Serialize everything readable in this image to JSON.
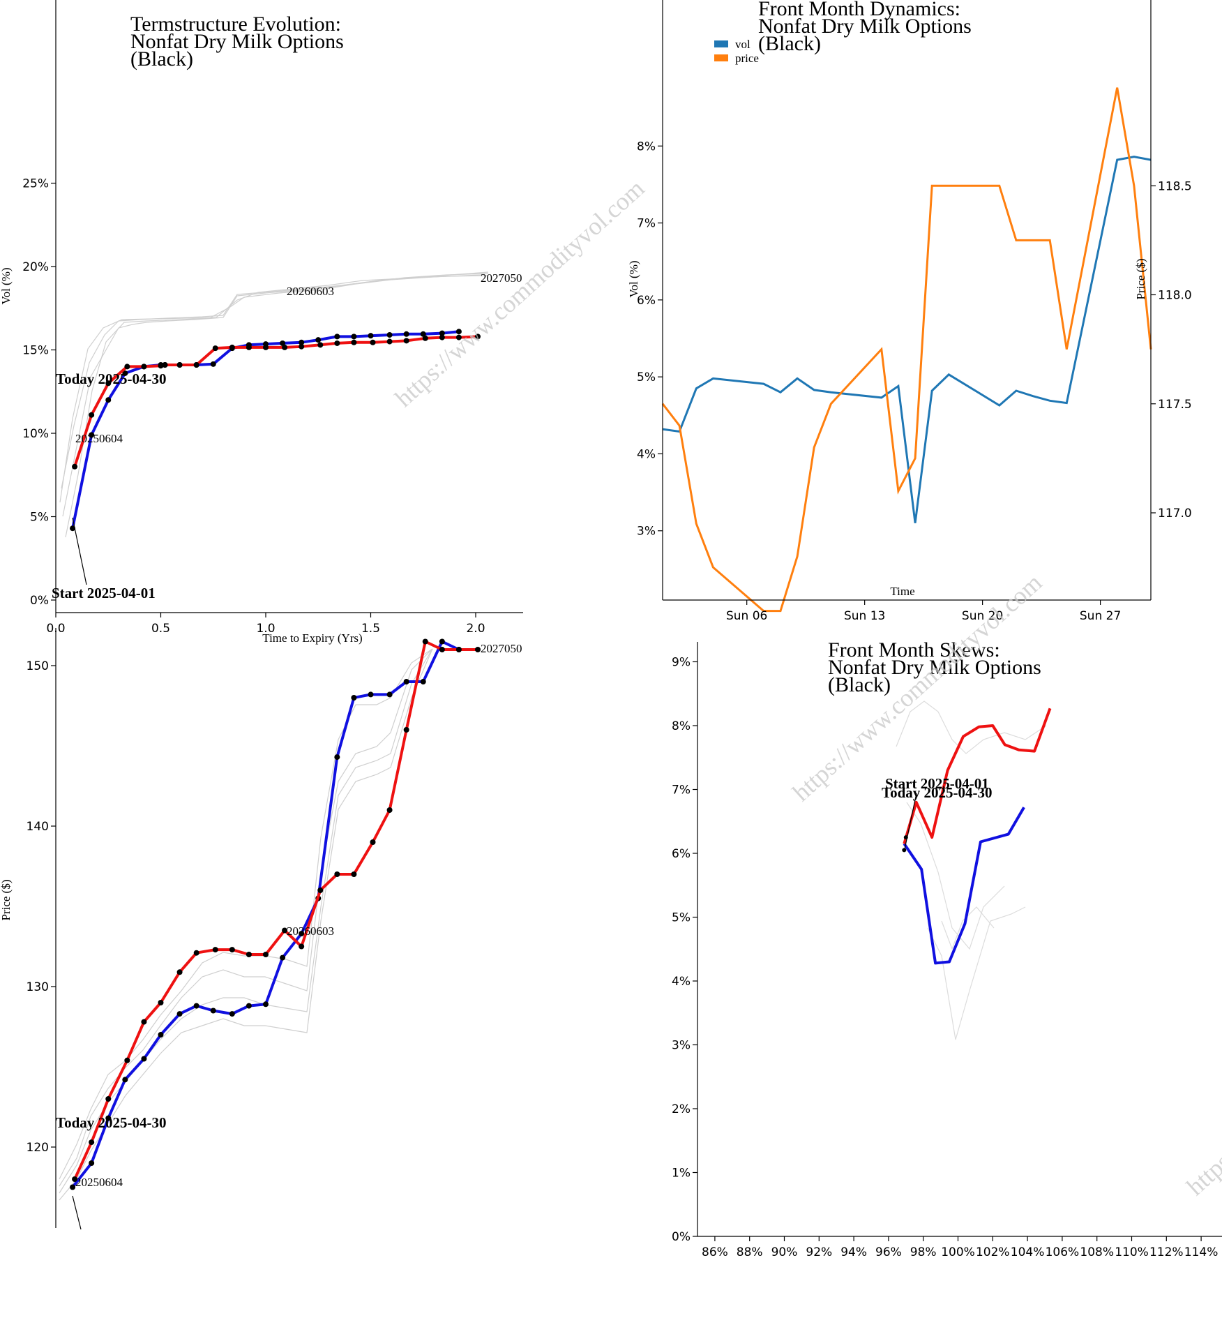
{
  "watermark": "https://www.commodityvol.com",
  "colors": {
    "blue": "#1010e0",
    "red": "#ee1111",
    "ghost": "#cfcfcf",
    "vol": "#1f77b4",
    "price": "#ff7f0e"
  },
  "chart_data": [
    {
      "id": "term_vol",
      "type": "line",
      "title": [
        "Termstructure Evolution:",
        "Nonfat Dry Milk Options",
        "(Black)"
      ],
      "xlabel": "Time to Expiry (Yrs)",
      "ylabel": "Vol (%)",
      "xlim": [
        0,
        2.2
      ],
      "ylim": [
        0,
        30
      ],
      "xticks": [
        "0.0",
        "0.5",
        "1.0",
        "1.5",
        "2.0"
      ],
      "yticks": [
        "0%",
        "5%",
        "10%",
        "15%",
        "20%",
        "25%"
      ],
      "labels": {
        "first_contract": "20250604",
        "mid_contract": "20260603",
        "last_contract": "2027050"
      },
      "annotations": {
        "today": "Today 2025-04-30",
        "start": "Start 2025-04-01"
      },
      "series": [
        {
          "role": "start",
          "x": [
            0.08,
            0.17,
            0.25,
            0.33,
            0.42,
            0.5,
            0.52,
            0.59,
            0.67,
            0.75,
            0.84,
            0.92,
            1.0,
            1.08,
            1.17,
            1.25,
            1.34,
            1.42,
            1.5,
            1.59,
            1.67,
            1.75,
            1.84,
            1.92
          ],
          "y": [
            4.3,
            9.9,
            12.0,
            13.6,
            14.0,
            14.1,
            14.1,
            14.1,
            14.1,
            14.15,
            15.1,
            15.3,
            15.35,
            15.4,
            15.45,
            15.6,
            15.8,
            15.8,
            15.85,
            15.9,
            15.95,
            15.95,
            16.0,
            16.1
          ]
        },
        {
          "role": "today",
          "x": [
            0.09,
            0.17,
            0.25,
            0.34,
            0.42,
            0.5,
            0.52,
            0.59,
            0.67,
            0.76,
            0.84,
            0.92,
            1.0,
            1.09,
            1.17,
            1.26,
            1.34,
            1.42,
            1.51,
            1.59,
            1.67,
            1.76,
            1.84,
            1.92,
            2.01
          ],
          "y": [
            8.0,
            11.1,
            13.0,
            14.0,
            14.0,
            14.05,
            14.1,
            14.1,
            14.1,
            15.1,
            15.15,
            15.15,
            15.15,
            15.15,
            15.2,
            15.3,
            15.4,
            15.45,
            15.45,
            15.5,
            15.55,
            15.7,
            15.75,
            15.75,
            15.8
          ]
        }
      ]
    },
    {
      "id": "front_dyn",
      "type": "line",
      "title": [
        "Front Month Dynamics:",
        "Nonfat Dry Milk Options",
        "(Black)"
      ],
      "xlabel": "Time",
      "ylabel": "Vol (%)",
      "ylabel_right": "Price ($)",
      "legend": [
        "vol",
        "price"
      ],
      "legend_position": "top-left",
      "xticks": [
        "Sun 06",
        "Sun 13",
        "Sun 20",
        "Sun 27"
      ],
      "yticks": [
        "3%",
        "4%",
        "5%",
        "6%",
        "7%",
        "8%"
      ],
      "yticks_right": [
        "117.0",
        "117.5",
        "118.0",
        "118.5"
      ],
      "xlim_days": [
        1,
        30
      ],
      "ylim": [
        2.1,
        8.9
      ],
      "ylim_right": [
        116.6,
        119.0
      ],
      "dates": [
        1,
        2,
        3,
        4,
        7,
        8,
        9,
        10,
        11,
        14,
        15,
        16,
        17,
        18,
        21,
        22,
        23,
        24,
        25,
        28,
        29,
        30
      ],
      "vol": [
        4.32,
        4.29,
        4.85,
        4.98,
        4.91,
        4.8,
        4.98,
        4.83,
        4.8,
        4.73,
        4.88,
        3.1,
        4.82,
        5.03,
        4.63,
        4.82,
        4.75,
        4.69,
        4.66,
        7.82,
        7.86,
        7.82
      ],
      "price": [
        117.5,
        117.4,
        116.95,
        116.75,
        116.55,
        116.55,
        116.8,
        117.3,
        117.5,
        117.75,
        117.1,
        117.25,
        118.5,
        118.5,
        118.5,
        118.25,
        118.25,
        118.25,
        117.75,
        118.95,
        118.5,
        117.75
      ]
    },
    {
      "id": "term_price",
      "type": "line",
      "title": [],
      "ylabel": "Price ($)",
      "xlim": [
        0,
        2.2
      ],
      "ylim": [
        115,
        152
      ],
      "yticks": [
        "120",
        "130",
        "140",
        "150"
      ],
      "labels": {
        "first_contract": "20250604",
        "mid_contract": "20260603",
        "last_contract": "2027050"
      },
      "annotations": {
        "today": "Today 2025-04-30"
      },
      "series": [
        {
          "role": "start",
          "x": [
            0.08,
            0.17,
            0.25,
            0.33,
            0.42,
            0.5,
            0.59,
            0.67,
            0.75,
            0.84,
            0.92,
            1.0,
            1.08,
            1.17,
            1.25,
            1.34,
            1.42,
            1.5,
            1.59,
            1.67,
            1.75,
            1.84,
            1.92
          ],
          "y": [
            117.5,
            119.0,
            121.8,
            124.2,
            125.5,
            127.0,
            128.3,
            128.8,
            128.5,
            128.3,
            128.8,
            128.9,
            131.8,
            133.3,
            135.5,
            144.3,
            148.0,
            148.2,
            148.2,
            149.0,
            149.0,
            151.5,
            151.0
          ]
        },
        {
          "role": "today",
          "x": [
            0.09,
            0.17,
            0.25,
            0.34,
            0.42,
            0.5,
            0.59,
            0.67,
            0.76,
            0.84,
            0.92,
            1.0,
            1.09,
            1.17,
            1.26,
            1.34,
            1.42,
            1.51,
            1.59,
            1.67,
            1.76,
            1.84,
            1.92,
            2.01
          ],
          "y": [
            118.0,
            120.3,
            123.0,
            125.4,
            127.8,
            129.0,
            130.9,
            132.1,
            132.3,
            132.3,
            132.0,
            132.0,
            133.5,
            132.5,
            136.0,
            137.0,
            137.0,
            139.0,
            141.0,
            146.0,
            151.5,
            151.0,
            151.0,
            151.0
          ]
        }
      ]
    },
    {
      "id": "skews",
      "type": "line",
      "title": [
        "Front Month Skews:",
        "Nonfat Dry Milk Options",
        "(Black)"
      ],
      "xlim": [
        85,
        115
      ],
      "ylim": [
        0,
        9.3
      ],
      "xticks": [
        "86%",
        "88%",
        "90%",
        "92%",
        "94%",
        "96%",
        "98%",
        "100%",
        "102%",
        "104%",
        "106%",
        "108%",
        "110%",
        "112%",
        "114%"
      ],
      "yticks": [
        "0%",
        "1%",
        "2%",
        "3%",
        "4%",
        "5%",
        "6%",
        "7%",
        "8%",
        "9%"
      ],
      "annotations": {
        "start": "Start 2025-04-01",
        "today": "Today 2025-04-30"
      },
      "series": [
        {
          "role": "start",
          "x": [
            96.9,
            97.9,
            98.7,
            99.5,
            100.4,
            101.3,
            102.9,
            103.8
          ],
          "y": [
            6.15,
            5.75,
            4.28,
            4.3,
            4.9,
            6.18,
            6.3,
            6.72
          ]
        },
        {
          "role": "today",
          "x": [
            96.9,
            97.6,
            98.5,
            99.4,
            100.3,
            101.2,
            102.0,
            102.7,
            103.5,
            104.4,
            105.3
          ],
          "y": [
            6.15,
            6.8,
            6.25,
            7.3,
            7.83,
            7.98,
            8.0,
            7.7,
            7.62,
            7.6,
            8.27
          ]
        }
      ]
    }
  ]
}
